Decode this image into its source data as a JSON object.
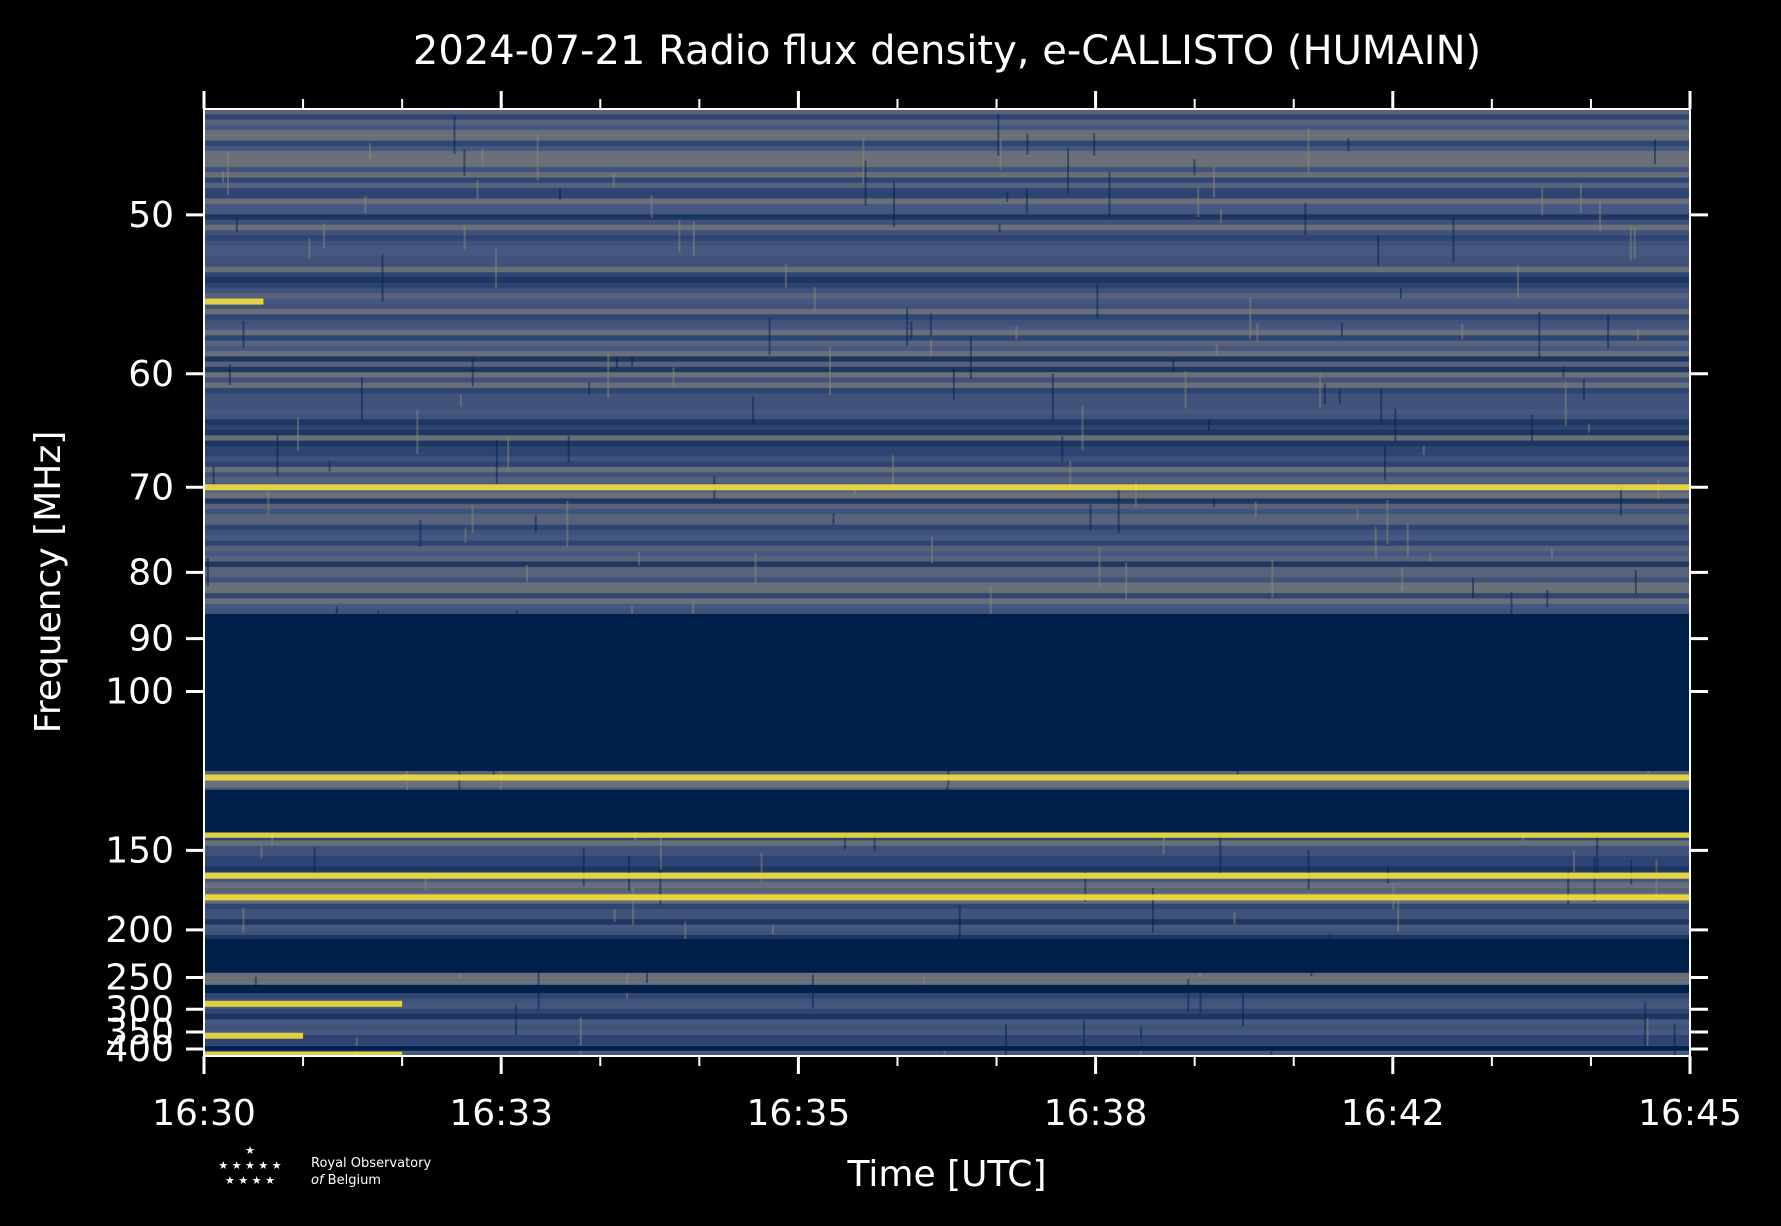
{
  "chart_data": {
    "type": "heatmap",
    "title": "2024-07-21 Radio flux density, e-CALLISTO (HUMAIN)",
    "xlabel": "Time [UTC]",
    "ylabel": "Frequency [MHz]",
    "x_tick_labels": [
      "16:30",
      "16:33",
      "16:35",
      "16:38",
      "16:42",
      "16:45"
    ],
    "x_range": [
      "16:30",
      "16:45"
    ],
    "y_ticks": [
      50,
      60,
      70,
      80,
      90,
      100,
      150,
      200,
      250,
      300,
      350,
      400
    ],
    "y_range": [
      45,
      425
    ],
    "y_scale": "reciprocal (inverted, low frequencies at top)",
    "colormap": "cividis",
    "colors": {
      "low": "#00204c",
      "mid": "#7c7b78",
      "high": "#fee838",
      "background": "#000000",
      "foreground": "#ffffff"
    },
    "masked_bands_mhz": [
      [
        86,
        120
      ],
      [
        126,
        142
      ],
      [
        208,
        244
      ],
      [
        260,
        272
      ],
      [
        390,
        406
      ]
    ],
    "features": [
      {
        "freq_mhz": 55,
        "duration_min": 0.6,
        "start": "16:30",
        "level": "high"
      },
      {
        "freq_mhz": 70,
        "duration_min": 15,
        "start": "16:30",
        "level": "high"
      },
      {
        "freq_mhz": 122,
        "duration_min": 15,
        "start": "16:30",
        "level": "high"
      },
      {
        "freq_mhz": 143,
        "duration_min": 15,
        "start": "16:30",
        "level": "high"
      },
      {
        "freq_mhz": 163,
        "duration_min": 15,
        "start": "16:30",
        "level": "high"
      },
      {
        "freq_mhz": 176,
        "duration_min": 15,
        "start": "16:30",
        "level": "high"
      },
      {
        "freq_mhz": 290,
        "duration_min": 2,
        "start": "16:30",
        "level": "high"
      },
      {
        "freq_mhz": 360,
        "duration_min": 1,
        "start": "16:30",
        "level": "high"
      },
      {
        "freq_mhz": 420,
        "duration_min": 2,
        "start": "16:30",
        "level": "high"
      }
    ]
  },
  "logo": {
    "line1": "Royal Observatory",
    "line2_prefix": "of",
    "line2": "Belgium"
  }
}
